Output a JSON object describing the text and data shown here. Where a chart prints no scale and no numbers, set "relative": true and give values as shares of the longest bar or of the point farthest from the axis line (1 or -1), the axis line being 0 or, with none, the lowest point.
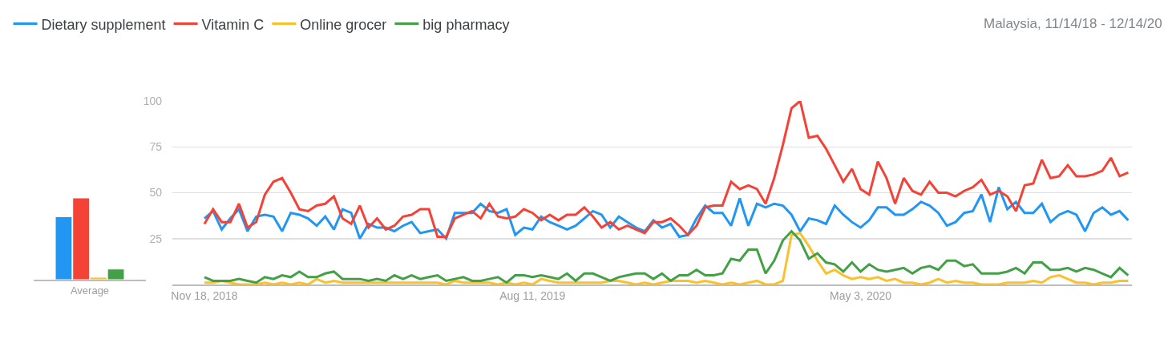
{
  "chart_data": [
    {
      "type": "bar",
      "relative": true,
      "categories": [
        "Average"
      ],
      "series": [
        {
          "color": "#2196f3",
          "values": [
            0.77
          ]
        },
        {
          "color": "#f44336",
          "values": [
            1
          ]
        },
        {
          "color": "#fbc02d",
          "values": [
            0.03
          ]
        },
        {
          "color": "#43a047",
          "values": [
            0.13
          ]
        }
      ],
      "grid": false,
      "legend": false
    },
    {
      "type": "line",
      "subtitle": "Malaysia, 11/14/18 - 12/14/20",
      "legend": "top",
      "grid": "y",
      "marker": "none",
      "line_style": "solid",
      "x": [
        "2018-11-18",
        "2018-11-25",
        "2018-12-02",
        "2018-12-09",
        "2018-12-16",
        "2018-12-23",
        "2018-12-30",
        "2019-01-06",
        "2019-01-13",
        "2019-01-20",
        "2019-01-27",
        "2019-02-03",
        "2019-02-10",
        "2019-02-17",
        "2019-02-24",
        "2019-03-03",
        "2019-03-10",
        "2019-03-17",
        "2019-03-24",
        "2019-03-31",
        "2019-04-07",
        "2019-04-14",
        "2019-04-21",
        "2019-04-28",
        "2019-05-05",
        "2019-05-12",
        "2019-05-19",
        "2019-05-26",
        "2019-06-02",
        "2019-06-09",
        "2019-06-16",
        "2019-06-23",
        "2019-06-30",
        "2019-07-07",
        "2019-07-14",
        "2019-07-21",
        "2019-07-28",
        "2019-08-04",
        "2019-08-11",
        "2019-08-18",
        "2019-08-25",
        "2019-09-01",
        "2019-09-08",
        "2019-09-15",
        "2019-09-22",
        "2019-09-29",
        "2019-10-06",
        "2019-10-13",
        "2019-10-20",
        "2019-10-27",
        "2019-11-03",
        "2019-11-10",
        "2019-11-17",
        "2019-11-24",
        "2019-12-01",
        "2019-12-08",
        "2019-12-15",
        "2019-12-22",
        "2019-12-29",
        "2020-01-05",
        "2020-01-12",
        "2020-01-19",
        "2020-01-26",
        "2020-02-02",
        "2020-02-09",
        "2020-02-16",
        "2020-02-23",
        "2020-03-01",
        "2020-03-08",
        "2020-03-15",
        "2020-03-22",
        "2020-03-29",
        "2020-04-05",
        "2020-04-12",
        "2020-04-19",
        "2020-04-26",
        "2020-05-03",
        "2020-05-10",
        "2020-05-17",
        "2020-05-24",
        "2020-05-31",
        "2020-06-07",
        "2020-06-14",
        "2020-06-21",
        "2020-06-28",
        "2020-07-05",
        "2020-07-12",
        "2020-07-19",
        "2020-07-26",
        "2020-08-02",
        "2020-08-09",
        "2020-08-16",
        "2020-08-23",
        "2020-08-30",
        "2020-09-06",
        "2020-09-13",
        "2020-09-20",
        "2020-09-27",
        "2020-10-04",
        "2020-10-11",
        "2020-10-18",
        "2020-10-25",
        "2020-11-01",
        "2020-11-08",
        "2020-11-15",
        "2020-11-22",
        "2020-11-29",
        "2020-12-06"
      ],
      "xlim": [
        "2018-10-23",
        "2020-12-09"
      ],
      "xticks": [
        {
          "value": "2018-11-18",
          "label": "Nov 18, 2018"
        },
        {
          "value": "2019-08-11",
          "label": "Aug 11, 2019"
        },
        {
          "value": "2020-05-03",
          "label": "May 3, 2020"
        }
      ],
      "ylim": [
        0,
        100
      ],
      "yticks": [
        25,
        50,
        75,
        100
      ],
      "series": [
        {
          "name": "Dietary supplement",
          "color": "#2196f3",
          "values": [
            36,
            40,
            30,
            36,
            41,
            29,
            37,
            38,
            37,
            29,
            39,
            38,
            36,
            32,
            37,
            30,
            41,
            39,
            25,
            33,
            31,
            31,
            29,
            32,
            34,
            28,
            29,
            30,
            25,
            39,
            39,
            39,
            44,
            40,
            39,
            41,
            27,
            31,
            30,
            37,
            34,
            32,
            30,
            32,
            36,
            40,
            38,
            31,
            37,
            34,
            31,
            29,
            35,
            31,
            33,
            26,
            27,
            36,
            43,
            39,
            39,
            32,
            47,
            32,
            44,
            42,
            44,
            43,
            38,
            29,
            36,
            35,
            33,
            43,
            38,
            34,
            31,
            35,
            42,
            42,
            38,
            38,
            41,
            45,
            43,
            39,
            32,
            34,
            39,
            40,
            49,
            34,
            53,
            41,
            45,
            39,
            39,
            44,
            34,
            38,
            40,
            38,
            29,
            39,
            42,
            38,
            40,
            35
          ]
        },
        {
          "name": "Vitamin C",
          "color": "#f44336",
          "values": [
            33,
            41,
            34,
            34,
            44,
            31,
            34,
            49,
            56,
            58,
            50,
            41,
            40,
            43,
            44,
            48,
            36,
            33,
            43,
            31,
            36,
            30,
            32,
            37,
            38,
            41,
            41,
            26,
            26,
            36,
            38,
            40,
            36,
            44,
            37,
            36,
            37,
            41,
            39,
            35,
            38,
            35,
            38,
            38,
            42,
            37,
            31,
            34,
            30,
            32,
            30,
            28,
            34,
            34,
            36,
            32,
            27,
            32,
            42,
            43,
            43,
            56,
            52,
            54,
            52,
            44,
            58,
            76,
            96,
            100,
            80,
            81,
            74,
            65,
            56,
            63,
            52,
            49,
            67,
            58,
            44,
            58,
            51,
            49,
            56,
            50,
            50,
            48,
            51,
            53,
            57,
            49,
            51,
            48,
            40,
            54,
            55,
            68,
            58,
            59,
            65,
            59,
            59,
            60,
            62,
            69,
            59,
            61
          ]
        },
        {
          "name": "Online grocer",
          "color": "#fbc02d",
          "values": [
            1,
            1,
            2,
            1,
            0,
            0,
            0,
            1,
            0,
            1,
            0,
            1,
            0,
            3,
            1,
            2,
            1,
            1,
            1,
            1,
            1,
            1,
            1,
            1,
            1,
            1,
            1,
            1,
            0,
            2,
            1,
            1,
            1,
            1,
            0,
            1,
            0,
            1,
            0,
            3,
            2,
            1,
            1,
            1,
            1,
            1,
            1,
            2,
            2,
            1,
            0,
            1,
            0,
            1,
            2,
            2,
            2,
            1,
            2,
            1,
            0,
            1,
            0,
            1,
            2,
            0,
            0,
            2,
            27,
            28,
            21,
            13,
            6,
            8,
            5,
            3,
            4,
            3,
            4,
            2,
            3,
            1,
            1,
            0,
            1,
            3,
            1,
            2,
            1,
            1,
            0,
            0,
            0,
            1,
            1,
            1,
            2,
            1,
            4,
            5,
            3,
            1,
            1,
            0,
            1,
            1,
            2,
            2
          ]
        },
        {
          "name": "big pharmacy",
          "color": "#43a047",
          "values": [
            4,
            2,
            2,
            2,
            3,
            2,
            1,
            4,
            3,
            5,
            4,
            7,
            4,
            4,
            6,
            7,
            3,
            3,
            3,
            2,
            3,
            2,
            5,
            3,
            5,
            3,
            4,
            5,
            2,
            3,
            4,
            2,
            2,
            3,
            4,
            1,
            5,
            5,
            4,
            5,
            4,
            3,
            6,
            2,
            6,
            6,
            4,
            2,
            4,
            5,
            6,
            6,
            3,
            6,
            2,
            5,
            5,
            8,
            5,
            5,
            6,
            14,
            13,
            19,
            19,
            6,
            13,
            24,
            29,
            24,
            14,
            17,
            12,
            11,
            7,
            12,
            7,
            11,
            8,
            7,
            8,
            9,
            6,
            9,
            10,
            8,
            13,
            13,
            10,
            11,
            6,
            6,
            6,
            7,
            9,
            6,
            12,
            12,
            8,
            8,
            9,
            7,
            9,
            8,
            6,
            4,
            9,
            5
          ]
        }
      ]
    }
  ]
}
